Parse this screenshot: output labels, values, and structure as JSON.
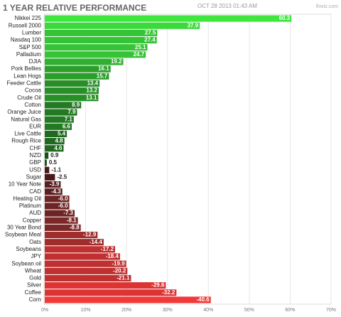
{
  "chart_data": {
    "type": "hbar",
    "title": "1 YEAR RELATIVE PERFORMANCE",
    "date": "OCT 28 2013 01:43 AM",
    "source": "finviz.com",
    "categories": [
      "Nikkei 225",
      "Russell 2000",
      "Lumber",
      "Nasdaq 100",
      "S&P 500",
      "Palladium",
      "DJIA",
      "Pork Bellies",
      "Lean Hogs",
      "Feeder Cattle",
      "Cocoa",
      "Crude Oil",
      "Cotton",
      "Orange Juice",
      "Natural Gas",
      "EUR",
      "Live Cattle",
      "Rough Rice",
      "CHF",
      "NZD",
      "GBP",
      "USD",
      "Sugar",
      "10 Year Note",
      "CAD",
      "Heating Oil",
      "Platinum",
      "AUD",
      "Copper",
      "30 Year Bond",
      "Soybean Meal",
      "Oats",
      "Soybeans",
      "JPY",
      "Soybean oil",
      "Wheat",
      "Gold",
      "Silver",
      "Coffee",
      "Corn"
    ],
    "values": [
      60.3,
      37.9,
      27.5,
      27.4,
      25.1,
      24.7,
      19.2,
      16.1,
      15.7,
      13.4,
      13.2,
      13.1,
      8.9,
      7.9,
      7.1,
      6.6,
      5.4,
      4.8,
      4.6,
      0.9,
      0.5,
      -1.1,
      -2.5,
      -3.9,
      -4.3,
      -6.0,
      -6.0,
      -7.3,
      -8.1,
      -8.8,
      -12.9,
      -14.4,
      -17.2,
      -18.4,
      -19.9,
      -20.2,
      -21.1,
      -29.6,
      -32.2,
      -40.6
    ],
    "value_labels": [
      "60.3",
      "37.9",
      "27.5",
      "27.4",
      "25.1",
      "24.7",
      "19.2",
      "16.1",
      "15.7",
      "13.4",
      "13.2",
      "13.1",
      "8.9",
      "7.9",
      "7.1",
      "6.6",
      "5.4",
      "4.8",
      "4.6",
      "0.9",
      "0.5",
      "-1.1",
      "-2.5",
      "-3.9",
      "-4.3",
      "-6.0",
      "-6.0",
      "-7.3",
      "-8.1",
      "-8.8",
      "-12.9",
      "-14.4",
      "-17.2",
      "-18.4",
      "-19.9",
      "-20.2",
      "-21.1",
      "-29.6",
      "-32.2",
      "-40.6"
    ],
    "colors": [
      "#3ee63e",
      "#3cd93c",
      "#35c435",
      "#35c435",
      "#35c435",
      "#35c435",
      "#30b030",
      "#2b9e2b",
      "#2b9e2b",
      "#288f28",
      "#288f28",
      "#288f28",
      "#237a23",
      "#237a23",
      "#237a23",
      "#237a23",
      "#1f6a1f",
      "#1f6a1f",
      "#1f6a1f",
      "#1a4f1a",
      "#1a4f1a",
      "#4a1a1a",
      "#4a1a1a",
      "#5c1f1f",
      "#5c1f1f",
      "#6e2424",
      "#6e2424",
      "#6e2424",
      "#7d2828",
      "#7d2828",
      "#a02c2c",
      "#a02c2c",
      "#c03030",
      "#c03030",
      "#c03030",
      "#c03030",
      "#c03030",
      "#dd3333",
      "#dd3333",
      "#f03a3a"
    ],
    "xlim": [
      0,
      70
    ],
    "xticks": [
      {
        "value": 0,
        "label": "0%"
      },
      {
        "value": 10,
        "label": "10%"
      },
      {
        "value": 20,
        "label": "20%"
      },
      {
        "value": 30,
        "label": "30%"
      },
      {
        "value": 40,
        "label": "40%"
      },
      {
        "value": 50,
        "label": "50%"
      },
      {
        "value": 60,
        "label": "60%"
      },
      {
        "value": 70,
        "label": "70%"
      }
    ],
    "grid": true
  }
}
